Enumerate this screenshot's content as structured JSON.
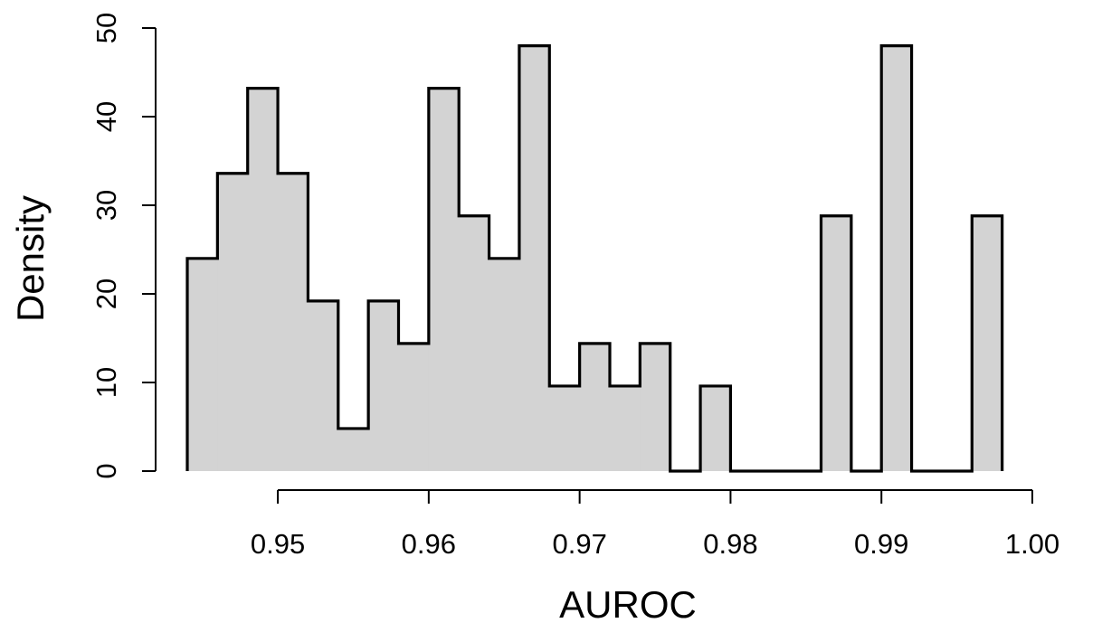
{
  "chart_data": {
    "type": "bar",
    "subtype": "histogram",
    "title": "",
    "xlabel": "AUROC",
    "ylabel": "Density",
    "bin_width": 0.002,
    "bin_start": 0.944,
    "values": [
      24,
      33.6,
      43.2,
      33.6,
      19.2,
      4.8,
      19.2,
      14.4,
      43.2,
      28.8,
      24,
      48,
      9.6,
      14.4,
      9.6,
      14.4,
      0,
      9.6,
      0,
      0,
      0,
      28.8,
      0,
      48,
      0,
      0,
      28.8
    ],
    "xlim": [
      0.944,
      1.0
    ],
    "ylim": [
      0,
      50
    ],
    "x_ticks": [
      0.95,
      0.96,
      0.97,
      0.98,
      0.99,
      1.0
    ],
    "x_tick_labels": [
      "0.95",
      "0.96",
      "0.97",
      "0.98",
      "0.99",
      "1.00"
    ],
    "y_ticks": [
      0,
      10,
      20,
      30,
      40,
      50
    ],
    "y_tick_labels": [
      "0",
      "10",
      "20",
      "30",
      "40",
      "50"
    ],
    "fill_color": "#d3d3d3",
    "outline_color": "#000000",
    "grid": false,
    "legend": "none"
  }
}
